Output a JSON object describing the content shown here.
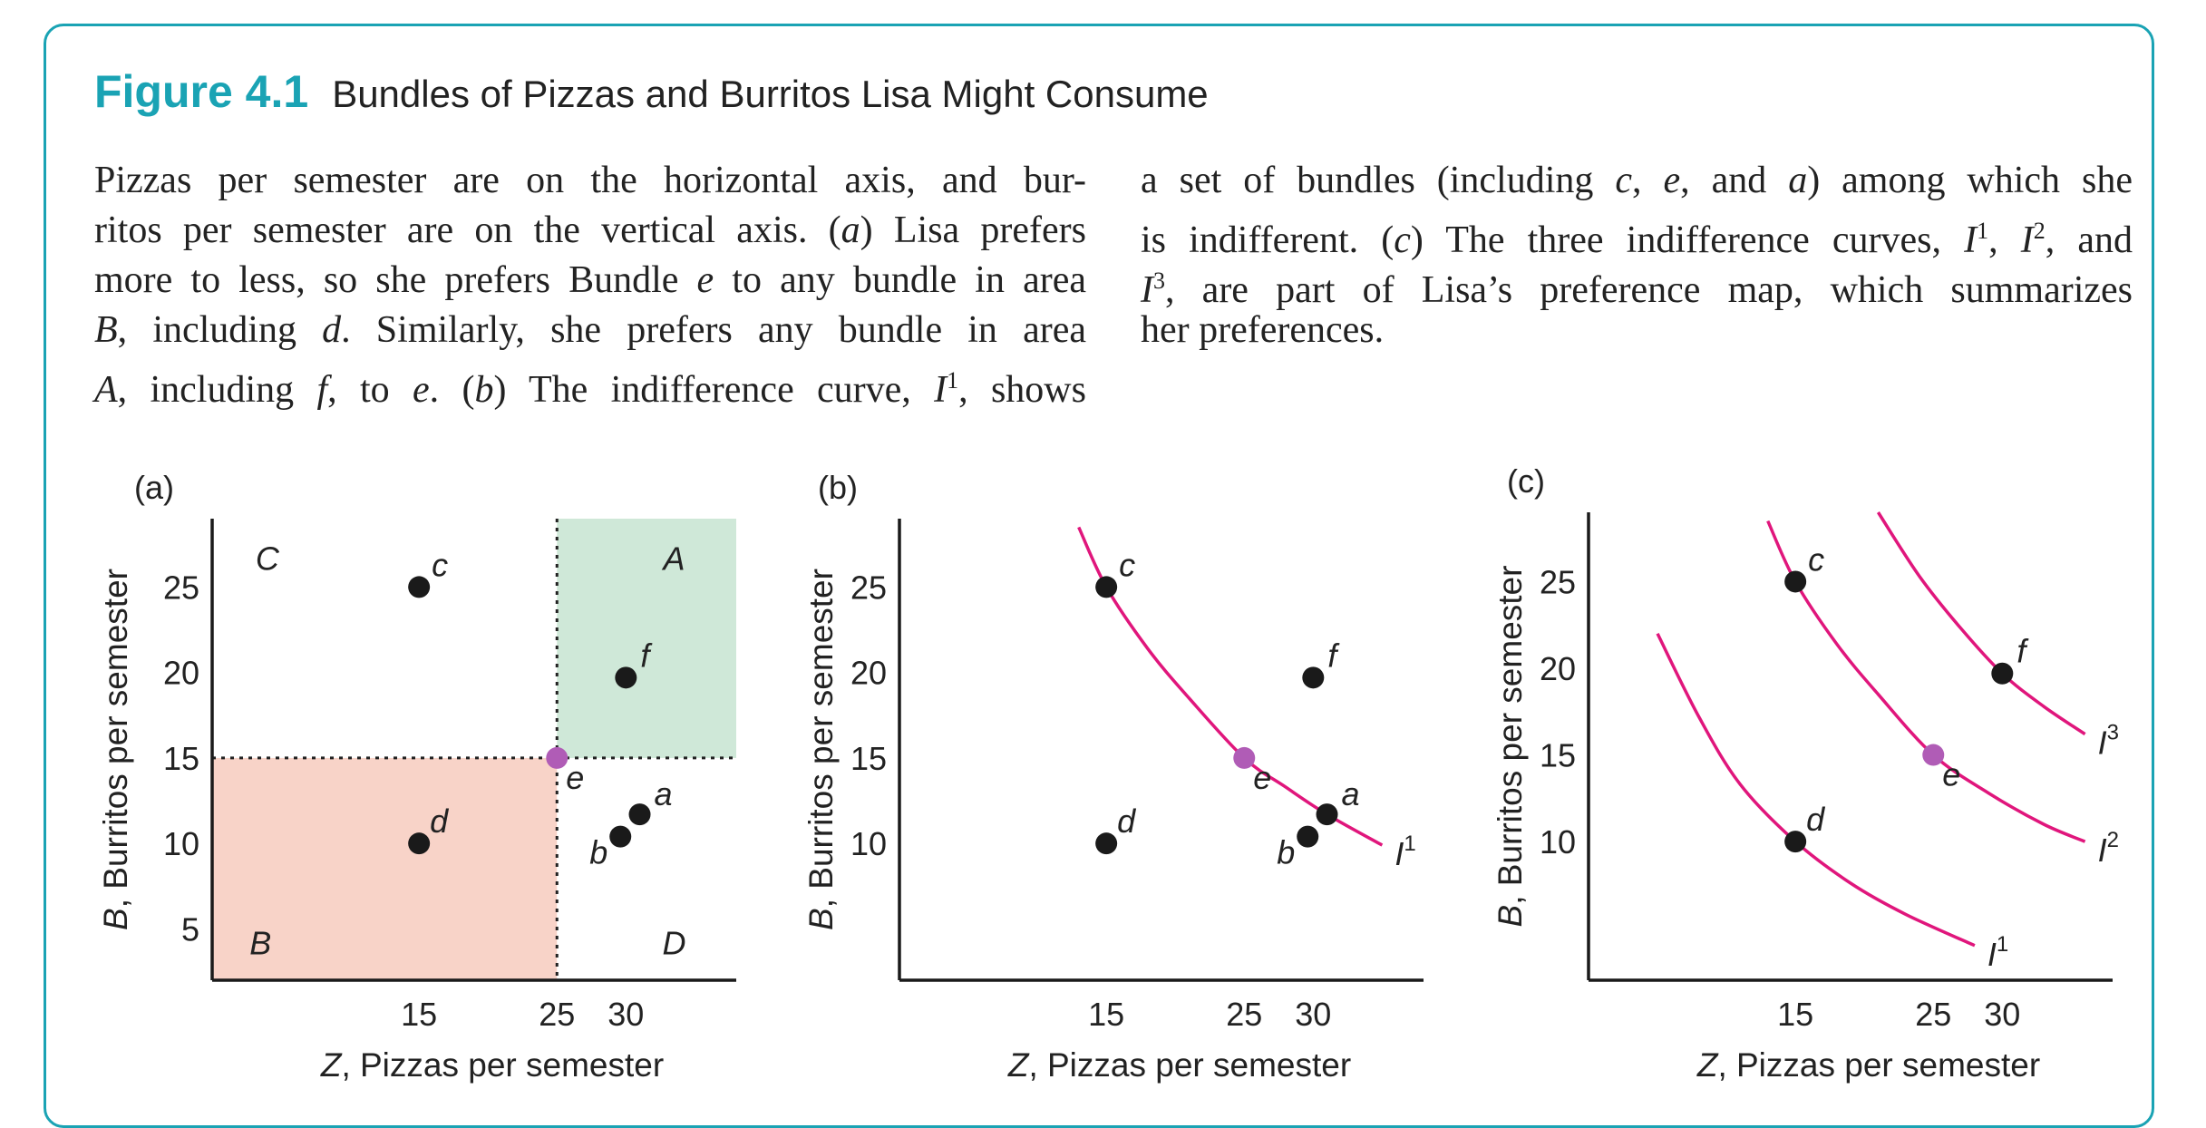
{
  "figure": {
    "label": "Figure 4.1",
    "title": "Bundles of Pizzas and Burritos Lisa Might Consume"
  },
  "caption": {
    "left_lines": [
      "Pizzas per semester are on the horizontal axis, and bur-",
      "ritos per semester are on the vertical axis. (a) Lisa prefers",
      "more to less, so she prefers Bundle e to any bundle in area",
      "B, including d. Similarly, she prefers any bundle in area",
      "A, including f, to e. (b) The indifference curve, I1, shows"
    ],
    "right_lines": [
      "a set of bundles (including c, e, and a) among which she",
      "is indifferent. (c) The three indifference curves, I1, I2, and",
      "I3, are part of Lisa’s preference map, which summarizes",
      "her preferences."
    ]
  },
  "colors": {
    "accent": "#1aa3b4",
    "curve": "#e0167c",
    "point": "#1a1a1a",
    "point_e": "#b05cb6",
    "area_A": "#cfe8d8",
    "area_B": "#f8d3c8"
  },
  "chart_data": [
    {
      "type": "scatter",
      "panel": "(a)",
      "xlabel_italic": "Z",
      "xlabel": ", Pizzas per semester",
      "ylabel_italic": "B",
      "ylabel": ", Burritos per semester",
      "xticks": [
        15,
        25,
        30
      ],
      "yticks": [
        5,
        10,
        15,
        20,
        25
      ],
      "xlim": [
        0,
        38
      ],
      "ylim": [
        2,
        29
      ],
      "areas": [
        {
          "name": "A",
          "x": [
            25,
            38
          ],
          "y": [
            15,
            29
          ],
          "color": "area_A"
        },
        {
          "name": "B",
          "x": [
            0,
            25
          ],
          "y": [
            2,
            15
          ],
          "color": "area_B"
        }
      ],
      "area_labels": [
        {
          "label": "A",
          "x": 33.5,
          "y": 26
        },
        {
          "label": "B",
          "x": 3.5,
          "y": 3.5
        },
        {
          "label": "C",
          "x": 4,
          "y": 26
        },
        {
          "label": "D",
          "x": 33.5,
          "y": 3.5
        }
      ],
      "dashed_guides": {
        "x": 25,
        "y": 15
      },
      "points": [
        {
          "label": "c",
          "x": 15,
          "y": 25
        },
        {
          "label": "f",
          "x": 30,
          "y": 19.7
        },
        {
          "label": "e",
          "x": 25,
          "y": 15,
          "highlight": true
        },
        {
          "label": "d",
          "x": 15,
          "y": 10
        },
        {
          "label": "a",
          "x": 31,
          "y": 11.7
        },
        {
          "label": "b",
          "x": 29.6,
          "y": 10.4
        }
      ]
    },
    {
      "type": "scatter",
      "panel": "(b)",
      "xlabel_italic": "Z",
      "xlabel": ", Pizzas per semester",
      "ylabel_italic": "B",
      "ylabel": ", Burritos per semester",
      "xticks": [
        15,
        25,
        30
      ],
      "yticks": [
        10,
        15,
        20,
        25
      ],
      "xlim": [
        0,
        38
      ],
      "ylim": [
        2,
        29
      ],
      "points": [
        {
          "label": "c",
          "x": 15,
          "y": 25
        },
        {
          "label": "f",
          "x": 30,
          "y": 19.7
        },
        {
          "label": "e",
          "x": 25,
          "y": 15,
          "highlight": true
        },
        {
          "label": "d",
          "x": 15,
          "y": 10
        },
        {
          "label": "a",
          "x": 31,
          "y": 11.7
        },
        {
          "label": "b",
          "x": 29.6,
          "y": 10.4
        }
      ],
      "curves": [
        {
          "name": "I",
          "sup": "1",
          "points": [
            [
              13,
              28.5
            ],
            [
              15,
              25
            ],
            [
              18,
              21.4
            ],
            [
              21,
              18.5
            ],
            [
              25,
              15
            ],
            [
              28,
              13.3
            ],
            [
              31,
              11.7
            ],
            [
              35,
              9.9
            ]
          ]
        }
      ]
    },
    {
      "type": "scatter",
      "panel": "(c)",
      "xlabel_italic": "Z",
      "xlabel": ", Pizzas per semester",
      "ylabel_italic": "B",
      "ylabel": ", Burritos per semester",
      "xticks": [
        15,
        25,
        30
      ],
      "yticks": [
        10,
        15,
        20,
        25
      ],
      "xlim": [
        0,
        38
      ],
      "ylim": [
        2,
        29
      ],
      "points": [
        {
          "label": "c",
          "x": 15,
          "y": 25
        },
        {
          "label": "f",
          "x": 30,
          "y": 19.7
        },
        {
          "label": "e",
          "x": 25,
          "y": 15,
          "highlight": true
        },
        {
          "label": "d",
          "x": 15,
          "y": 10
        }
      ],
      "curves": [
        {
          "name": "I",
          "sup": "1",
          "points": [
            [
              5,
              22
            ],
            [
              8,
              17.2
            ],
            [
              11,
              13.3
            ],
            [
              15,
              10
            ],
            [
              19,
              7.6
            ],
            [
              23,
              5.8
            ],
            [
              28,
              4
            ]
          ]
        },
        {
          "name": "I",
          "sup": "2",
          "points": [
            [
              13,
              28.5
            ],
            [
              15,
              25
            ],
            [
              18,
              21.4
            ],
            [
              21,
              18.5
            ],
            [
              25,
              15
            ],
            [
              29,
              12.8
            ],
            [
              33,
              11
            ],
            [
              36,
              10
            ]
          ]
        },
        {
          "name": "I",
          "sup": "3",
          "points": [
            [
              21,
              29
            ],
            [
              24,
              25.3
            ],
            [
              27,
              22.3
            ],
            [
              30,
              19.7
            ],
            [
              33,
              17.8
            ],
            [
              36,
              16.2
            ]
          ]
        }
      ]
    }
  ]
}
